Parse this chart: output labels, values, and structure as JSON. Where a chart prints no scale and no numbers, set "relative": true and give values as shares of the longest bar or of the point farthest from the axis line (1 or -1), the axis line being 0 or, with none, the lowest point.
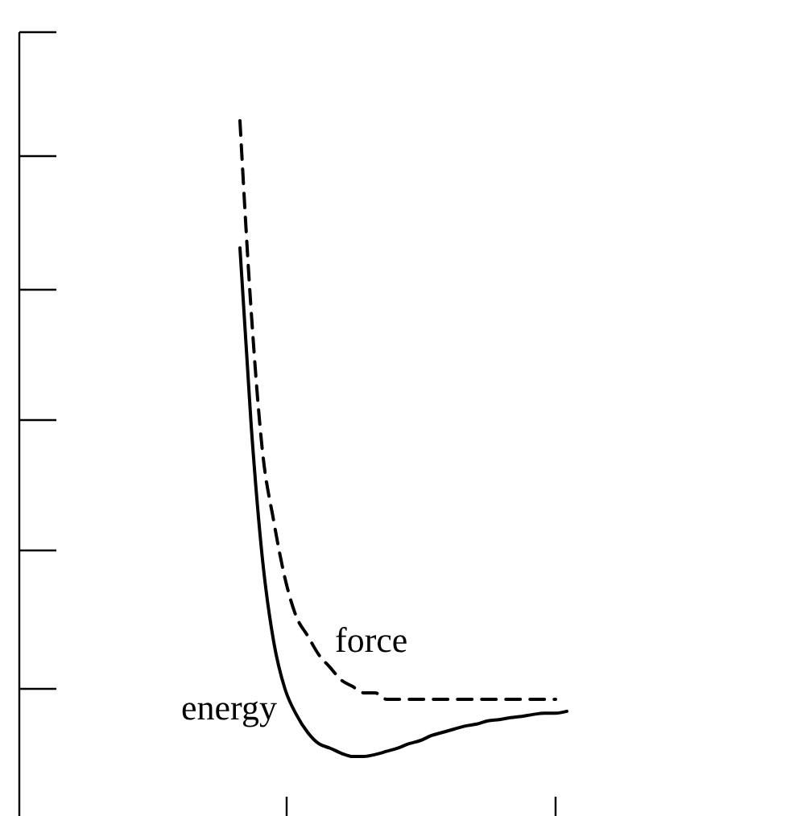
{
  "chart_data": {
    "type": "line",
    "relative": true,
    "categories": [
      null,
      null,
      null,
      null,
      null,
      null,
      null,
      null,
      null,
      null,
      null,
      null,
      null,
      null,
      null,
      null,
      null,
      null,
      null,
      null,
      null,
      null,
      null,
      null,
      null,
      null,
      null,
      null,
      null,
      null
    ],
    "legend": false,
    "marker": "none",
    "series": [
      {
        "name": "energy",
        "color": "#000000",
        "line_style": "solid",
        "values": [
          0.8,
          0.52,
          0.31,
          0.18,
          0.106,
          0.066,
          0.038,
          0.02,
          0.013,
          0.005,
          0,
          0,
          0.003,
          0.008,
          0.013,
          0.02,
          0.025,
          0.033,
          0.038,
          0.043,
          0.048,
          0.051,
          0.056,
          0.058,
          0.061,
          0.063,
          0.066,
          0.068,
          0.068,
          0.071
        ]
      },
      {
        "name": "force",
        "color": "#000000",
        "line_style": "dashed",
        "values": [
          1,
          0.7,
          0.48,
          0.37,
          0.28,
          0.22,
          0.19,
          0.16,
          0.14,
          0.12,
          0.11,
          0.1,
          0.1,
          0.09,
          0.09,
          0.09,
          0.09,
          0.09,
          0.09,
          0.09,
          0.09,
          0.09,
          0.09,
          0.09,
          0.09,
          0.09,
          0.09,
          0.09,
          0.09,
          null
        ]
      }
    ]
  }
}
